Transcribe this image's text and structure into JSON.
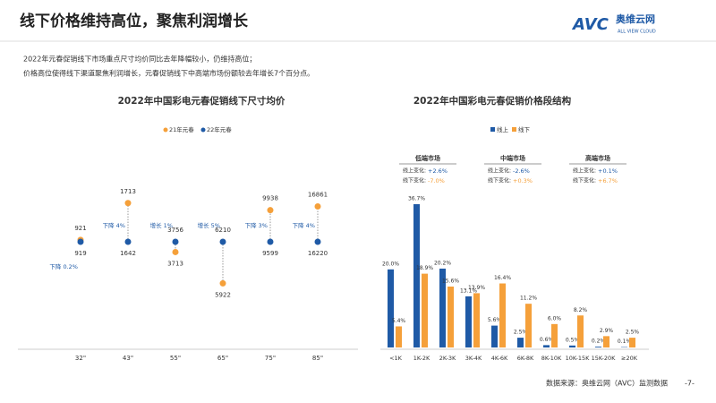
{
  "header": {
    "title": "线下价格维持高位，聚焦利润增长",
    "logo_mark": "AVC",
    "logo_name": "奥维云网",
    "logo_sub": "ALL VIEW CLOUD"
  },
  "notes": [
    "2022年元春促销线下市场重点尺寸均价同比去年降幅较小，仍维持高位；",
    "价格高位使得线下渠道聚焦利润增长，元春促销线下中高端市场份额较去年增长7个百分点。"
  ],
  "chart_data": [
    {
      "type": "dotpair",
      "title": "2022年中国彩电元春促销线下尺寸均价",
      "categories": [
        "32\"",
        "43\"",
        "55\"",
        "65\"",
        "75\"",
        "85\""
      ],
      "series": [
        {
          "name": "21年元春",
          "color": "#f5a03a",
          "values": [
            921,
            1713,
            3713,
            5922,
            9938,
            16861
          ]
        },
        {
          "name": "22年元春",
          "color": "#1f5aa6",
          "values": [
            919,
            1642,
            3756,
            6210,
            9599,
            16220
          ]
        }
      ],
      "change_labels": [
        "下降 0.2%",
        "下降 4%",
        "增长 1%",
        "增长 5%",
        "下降 3%",
        "下降 4%"
      ]
    },
    {
      "type": "bar",
      "title": "2022年中国彩电元春促销价格段结构",
      "categories": [
        "<1K",
        "1K-2K",
        "2K-3K",
        "3K-4K",
        "4K-6K",
        "6K-8K",
        "8K-10K",
        "10K-15K",
        "15K-20K",
        "≥20K"
      ],
      "series": [
        {
          "name": "线上",
          "color": "#1f5aa6",
          "values": [
            20.0,
            36.7,
            20.2,
            13.1,
            5.6,
            2.5,
            0.6,
            0.5,
            0.2,
            0.1
          ],
          "value_labels": [
            "20.0%",
            "36.7%",
            "20.2%",
            "13.1%",
            "5.6%",
            "2.5%",
            "0.6%",
            "0.5%",
            "0.2%",
            "0.1%"
          ]
        },
        {
          "name": "线下",
          "color": "#f5a03a",
          "values": [
            5.4,
            18.9,
            15.6,
            13.9,
            16.4,
            11.2,
            6.0,
            8.2,
            2.9,
            2.5
          ],
          "value_labels": [
            "5.4%",
            "18.9%",
            "15.6%",
            "13.9%",
            "16.4%",
            "11.2%",
            "6.0%",
            "8.2%",
            "2.9%",
            "2.5%"
          ]
        }
      ],
      "segments": [
        {
          "name": "低端市场",
          "lines": [
            {
              "label": "线上变化:",
              "value": "+2.6%"
            },
            {
              "label": "线下变化:",
              "value": "-7.0%"
            }
          ]
        },
        {
          "name": "中端市场",
          "lines": [
            {
              "label": "线上变化:",
              "value": "-2.6%"
            },
            {
              "label": "线下变化:",
              "value": "+0.3%"
            }
          ]
        },
        {
          "name": "高端市场",
          "lines": [
            {
              "label": "线上变化:",
              "value": "+0.1%"
            },
            {
              "label": "线下变化:",
              "value": "+6.7%"
            }
          ]
        }
      ]
    }
  ],
  "footer": {
    "source": "数据来源：奥维云网（AVC）监测数据",
    "page": "-7-"
  }
}
